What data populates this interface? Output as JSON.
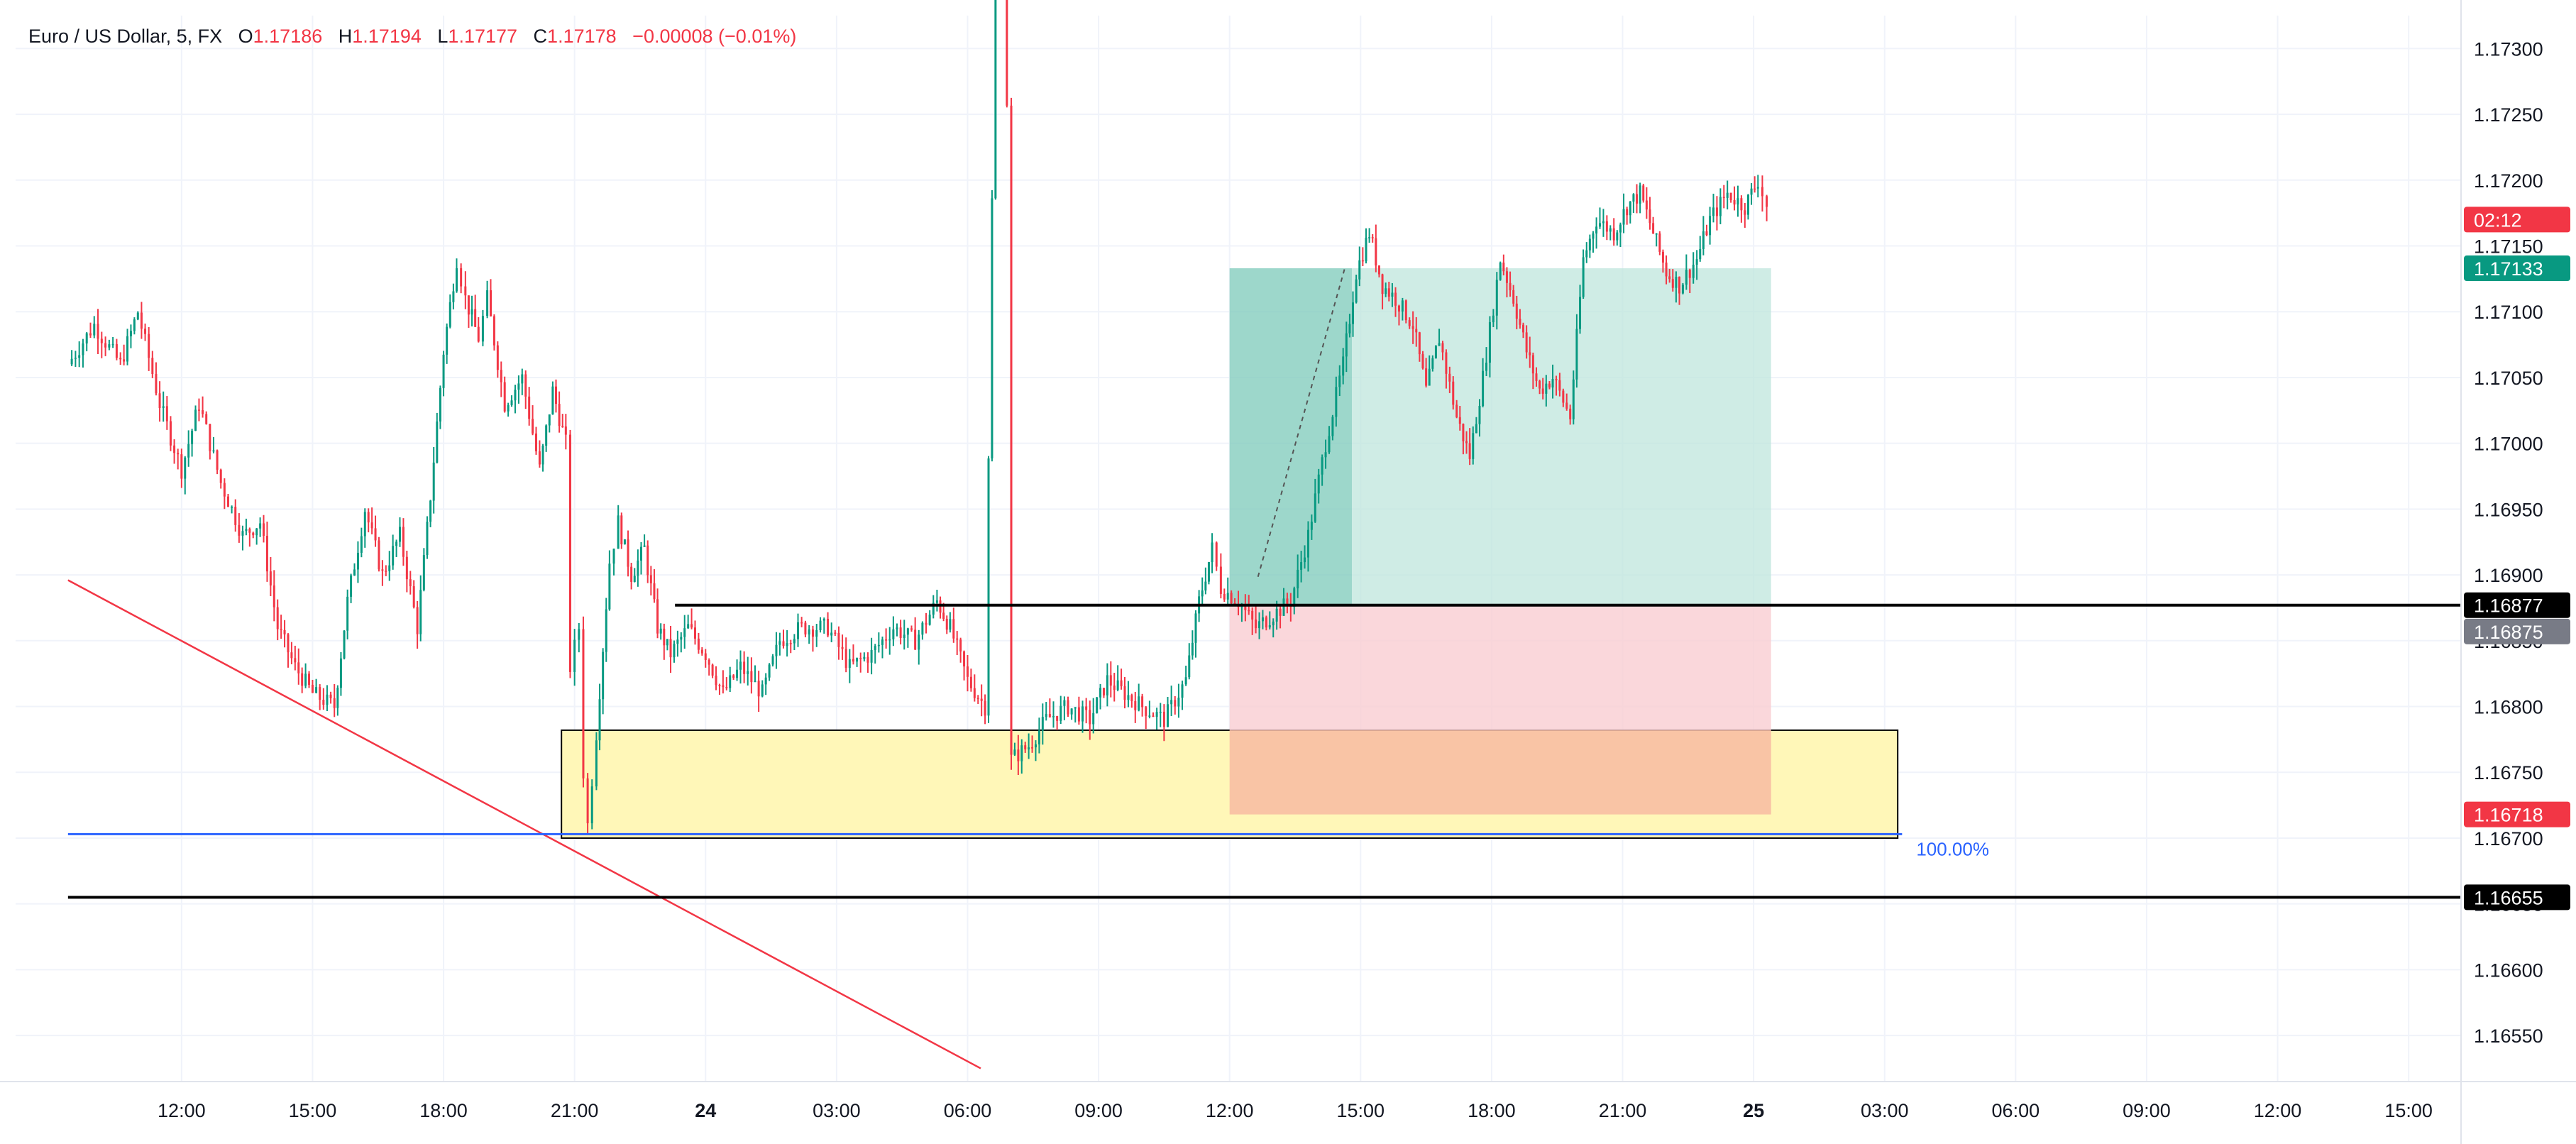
{
  "legend": {
    "symbol": "Euro / US Dollar, 5, FX",
    "open_key": "O",
    "open": "1.17186",
    "high_key": "H",
    "high": "1.17194",
    "low_key": "L",
    "low": "1.17177",
    "close_key": "C",
    "close": "1.17178",
    "change": "−0.00008 (−0.01%)"
  },
  "colors": {
    "up": "#089981",
    "down": "#f23645",
    "grid": "#f0f3fa",
    "tp_zone": "#bfe5dc",
    "sl_zone": "#f9cdd2",
    "demand_zone": "#fff7b8",
    "trendline": "#f23645",
    "fib_line": "#2962ff"
  },
  "chart_data": {
    "type": "candlestick",
    "timeframe": "5",
    "ylim": [
      1.16515,
      1.17325
    ],
    "y_ticks": [
      "1.17300",
      "1.17250",
      "1.17200",
      "1.17150",
      "1.17100",
      "1.17050",
      "1.17000",
      "1.16950",
      "1.16900",
      "1.16850",
      "1.16800",
      "1.16750",
      "1.16700",
      "1.16650",
      "1.16600",
      "1.16550"
    ],
    "x_ticks": [
      {
        "label": "12:00",
        "t": 12,
        "bold": false
      },
      {
        "label": "15:00",
        "t": 15,
        "bold": false
      },
      {
        "label": "18:00",
        "t": 18,
        "bold": false
      },
      {
        "label": "21:00",
        "t": 21,
        "bold": false
      },
      {
        "label": "24",
        "t": 24,
        "bold": true
      },
      {
        "label": "03:00",
        "t": 27,
        "bold": false
      },
      {
        "label": "06:00",
        "t": 30,
        "bold": false
      },
      {
        "label": "09:00",
        "t": 33,
        "bold": false
      },
      {
        "label": "12:00",
        "t": 36,
        "bold": false
      },
      {
        "label": "15:00",
        "t": 39,
        "bold": false
      },
      {
        "label": "18:00",
        "t": 42,
        "bold": false
      },
      {
        "label": "21:00",
        "t": 45,
        "bold": false
      },
      {
        "label": "25",
        "t": 48,
        "bold": true
      },
      {
        "label": "03:00",
        "t": 51,
        "bold": false
      },
      {
        "label": "06:00",
        "t": 54,
        "bold": false
      },
      {
        "label": "09:00",
        "t": 57,
        "bold": false
      },
      {
        "label": "12:00",
        "t": 60,
        "bold": false
      },
      {
        "label": "15:00",
        "t": 63,
        "bold": false
      }
    ],
    "price_path": [
      [
        9.4,
        1.1706
      ],
      [
        10.0,
        1.1709
      ],
      [
        10.6,
        1.1706
      ],
      [
        11.0,
        1.171
      ],
      [
        11.5,
        1.1703
      ],
      [
        12.0,
        1.1698
      ],
      [
        12.4,
        1.1703
      ],
      [
        12.9,
        1.1697
      ],
      [
        13.4,
        1.1693
      ],
      [
        13.8,
        1.1694
      ],
      [
        14.2,
        1.1686
      ],
      [
        14.6,
        1.1683
      ],
      [
        15.0,
        1.1681
      ],
      [
        15.5,
        1.168
      ],
      [
        15.8,
        1.1688
      ],
      [
        16.2,
        1.1695
      ],
      [
        16.6,
        1.169
      ],
      [
        17.0,
        1.1693
      ],
      [
        17.4,
        1.1686
      ],
      [
        17.7,
        1.1696
      ],
      [
        18.0,
        1.1707
      ],
      [
        18.3,
        1.1714
      ],
      [
        18.5,
        1.1711
      ],
      [
        18.8,
        1.1708
      ],
      [
        19.0,
        1.1711
      ],
      [
        19.4,
        1.1703
      ],
      [
        19.8,
        1.1705
      ],
      [
        20.2,
        1.1698
      ],
      [
        20.5,
        1.1704
      ],
      [
        20.8,
        1.17
      ],
      [
        20.9,
        1.1683
      ],
      [
        21.1,
        1.1686
      ],
      [
        21.2,
        1.1675
      ],
      [
        21.3,
        1.1671
      ],
      [
        21.5,
        1.1678
      ],
      [
        21.8,
        1.1691
      ],
      [
        22.0,
        1.1694
      ],
      [
        22.3,
        1.169
      ],
      [
        22.6,
        1.1692
      ],
      [
        22.9,
        1.1686
      ],
      [
        23.2,
        1.1684
      ],
      [
        23.6,
        1.1686
      ],
      [
        24.0,
        1.1684
      ],
      [
        24.4,
        1.1681
      ],
      [
        24.8,
        1.1683
      ],
      [
        25.3,
        1.1681
      ],
      [
        25.7,
        1.1685
      ],
      [
        26.2,
        1.1686
      ],
      [
        26.8,
        1.1686
      ],
      [
        27.3,
        1.1683
      ],
      [
        27.8,
        1.1684
      ],
      [
        28.3,
        1.1686
      ],
      [
        28.8,
        1.1685
      ],
      [
        29.3,
        1.1688
      ],
      [
        29.6,
        1.1686
      ],
      [
        30.0,
        1.1682
      ],
      [
        30.4,
        1.168
      ],
      [
        30.8,
        1.1776
      ],
      [
        31.0,
        1.1676
      ],
      [
        31.4,
        1.1677
      ],
      [
        31.8,
        1.1679
      ],
      [
        32.3,
        1.168
      ],
      [
        32.8,
        1.1679
      ],
      [
        33.2,
        1.1682
      ],
      [
        33.6,
        1.1681
      ],
      [
        34.0,
        1.168
      ],
      [
        34.5,
        1.1679
      ],
      [
        35.0,
        1.1682
      ],
      [
        35.3,
        1.1688
      ],
      [
        35.6,
        1.1692
      ],
      [
        35.8,
        1.1689
      ],
      [
        36.2,
        1.1688
      ],
      [
        36.6,
        1.1686
      ],
      [
        37.0,
        1.1687
      ],
      [
        37.4,
        1.1688
      ],
      [
        37.8,
        1.1693
      ],
      [
        38.2,
        1.17
      ],
      [
        38.6,
        1.1706
      ],
      [
        38.9,
        1.1713
      ],
      [
        39.2,
        1.1716
      ],
      [
        39.5,
        1.1712
      ],
      [
        39.8,
        1.1711
      ],
      [
        40.2,
        1.1709
      ],
      [
        40.5,
        1.1704
      ],
      [
        40.8,
        1.1708
      ],
      [
        41.2,
        1.1702
      ],
      [
        41.5,
        1.1699
      ],
      [
        41.8,
        1.1705
      ],
      [
        42.2,
        1.1714
      ],
      [
        42.5,
        1.1711
      ],
      [
        42.8,
        1.1707
      ],
      [
        43.1,
        1.1704
      ],
      [
        43.4,
        1.1705
      ],
      [
        43.8,
        1.1702
      ],
      [
        44.1,
        1.1714
      ],
      [
        44.4,
        1.1717
      ],
      [
        44.8,
        1.1716
      ],
      [
        45.1,
        1.1718
      ],
      [
        45.4,
        1.1719
      ],
      [
        45.7,
        1.1716
      ],
      [
        46.0,
        1.1713
      ],
      [
        46.3,
        1.1712
      ],
      [
        46.7,
        1.1714
      ],
      [
        47.0,
        1.1717
      ],
      [
        47.4,
        1.1719
      ],
      [
        47.8,
        1.1718
      ],
      [
        48.1,
        1.172
      ],
      [
        48.3,
        1.1718
      ]
    ],
    "horizontal_lines": [
      {
        "price": 1.16877,
        "label": "1.16877",
        "color": "#000000",
        "from_t": 23.3
      },
      {
        "price": 1.16655,
        "label": "1.16655",
        "color": "#000000",
        "from_t": 9.4
      }
    ],
    "fib_line": {
      "price": 1.16703,
      "label": "100.00%",
      "from_t": 9.4,
      "to_t": 51.4
    },
    "trendline": {
      "from": [
        9.4,
        1.16896
      ],
      "to": [
        30.3,
        1.16525
      ]
    },
    "demand_zone": {
      "from_t": 20.7,
      "to_t": 51.3,
      "top": 1.16782,
      "bottom": 1.167
    },
    "long_position": {
      "from_t": 36.0,
      "to_t": 48.4,
      "entry": 1.16877,
      "target": 1.17133,
      "stop": 1.16718,
      "filled_to_t": 38.8
    },
    "price_labels": [
      {
        "text": "02:12",
        "price": 1.1717,
        "kind": "countdown",
        "bg": "#f23645"
      },
      {
        "text": "1.17133",
        "price": 1.17133,
        "kind": "target",
        "bg": "#089981"
      },
      {
        "text": "1.16877",
        "price": 1.16877,
        "kind": "line",
        "bg": "#000000"
      },
      {
        "text": "1.16875",
        "price": 1.16857,
        "kind": "last",
        "bg": "#787b86"
      },
      {
        "text": "1.16718",
        "price": 1.16718,
        "kind": "stop",
        "bg": "#f23645"
      },
      {
        "text": "1.16655",
        "price": 1.16655,
        "kind": "line",
        "bg": "#000000"
      }
    ]
  }
}
